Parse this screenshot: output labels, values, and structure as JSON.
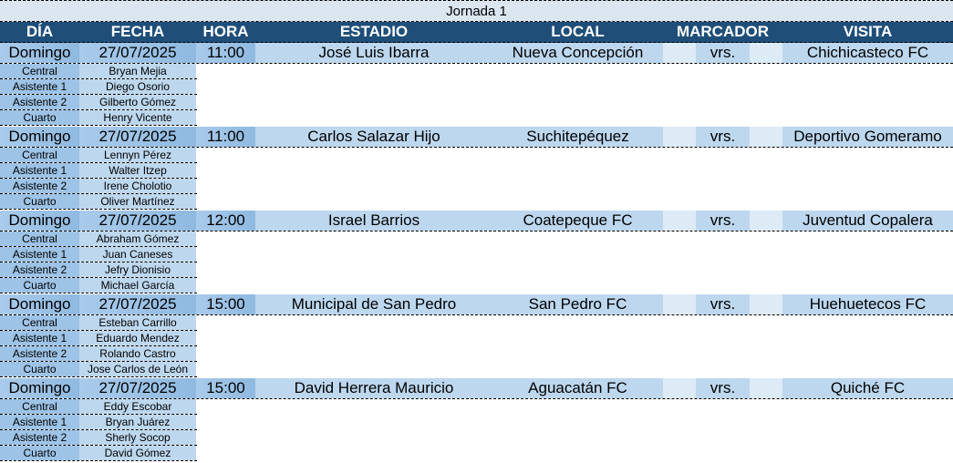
{
  "title": "Jornada 1",
  "headers": [
    "DÍA",
    "FECHA",
    "HORA",
    "ESTADIO",
    "LOCAL",
    "MARCADOR",
    "VISITA"
  ],
  "matches": [
    {
      "day": "Domingo",
      "date": "27/07/2025",
      "time": "11:00",
      "stadium": "José Luis Ibarra",
      "local": "Nueva Concepción",
      "score_local": "",
      "vs": "vrs.",
      "score_visit": "",
      "visit": "Chichicasteco FC",
      "referees": [
        {
          "role": "Central",
          "name": "Bryan Mejia"
        },
        {
          "role": "Asistente 1",
          "name": "Diego Osorio"
        },
        {
          "role": "Asistente 2",
          "name": "Gilberto Gómez"
        },
        {
          "role": "Cuarto",
          "name": "Henry Vicente"
        }
      ]
    },
    {
      "day": "Domingo",
      "date": "27/07/2025",
      "time": "11:00",
      "stadium": "Carlos Salazar Hijo",
      "local": "Suchitepéquez",
      "score_local": "",
      "vs": "vrs.",
      "score_visit": "",
      "visit": "Deportivo Gomeramo",
      "referees": [
        {
          "role": "Central",
          "name": "Lennyn Pérez"
        },
        {
          "role": "Asistente 1",
          "name": "Walter Itzep"
        },
        {
          "role": "Asistente 2",
          "name": "Irene Cholotio"
        },
        {
          "role": "Cuarto",
          "name": "Oliver Martínez"
        }
      ]
    },
    {
      "day": "Domingo",
      "date": "27/07/2025",
      "time": "12:00",
      "stadium": "Israel Barrios",
      "local": "Coatepeque FC",
      "score_local": "",
      "vs": "vrs.",
      "score_visit": "",
      "visit": "Juventud Copalera",
      "referees": [
        {
          "role": "Central",
          "name": "Abraham Gómez"
        },
        {
          "role": "Asistente 1",
          "name": "Juan Caneses"
        },
        {
          "role": "Asistente 2",
          "name": "Jefry Dionisio"
        },
        {
          "role": "Cuarto",
          "name": "Michael García"
        }
      ]
    },
    {
      "day": "Domingo",
      "date": "27/07/2025",
      "time": "15:00",
      "stadium": "Municipal de San Pedro",
      "local": "San Pedro FC",
      "score_local": "",
      "vs": "vrs.",
      "score_visit": "",
      "visit": "Huehuetecos FC",
      "referees": [
        {
          "role": "Central",
          "name": "Esteban Carrillo"
        },
        {
          "role": "Asistente 1",
          "name": "Eduardo Mendez"
        },
        {
          "role": "Asistente 2",
          "name": "Rolando Castro"
        },
        {
          "role": "Cuarto",
          "name": "Jose Carlos de León"
        }
      ]
    },
    {
      "day": "Domingo",
      "date": "27/07/2025",
      "time": "15:00",
      "stadium": "David Herrera Mauricio",
      "local": "Aguacatán FC",
      "score_local": "",
      "vs": "vrs.",
      "score_visit": "",
      "visit": "Quiché FC",
      "referees": [
        {
          "role": "Central",
          "name": "Eddy Escobar"
        },
        {
          "role": "Asistente 1",
          "name": "Bryan Juárez"
        },
        {
          "role": "Asistente 2",
          "name": "Sherly Socop"
        },
        {
          "role": "Cuarto",
          "name": "David Gómez"
        }
      ]
    }
  ]
}
